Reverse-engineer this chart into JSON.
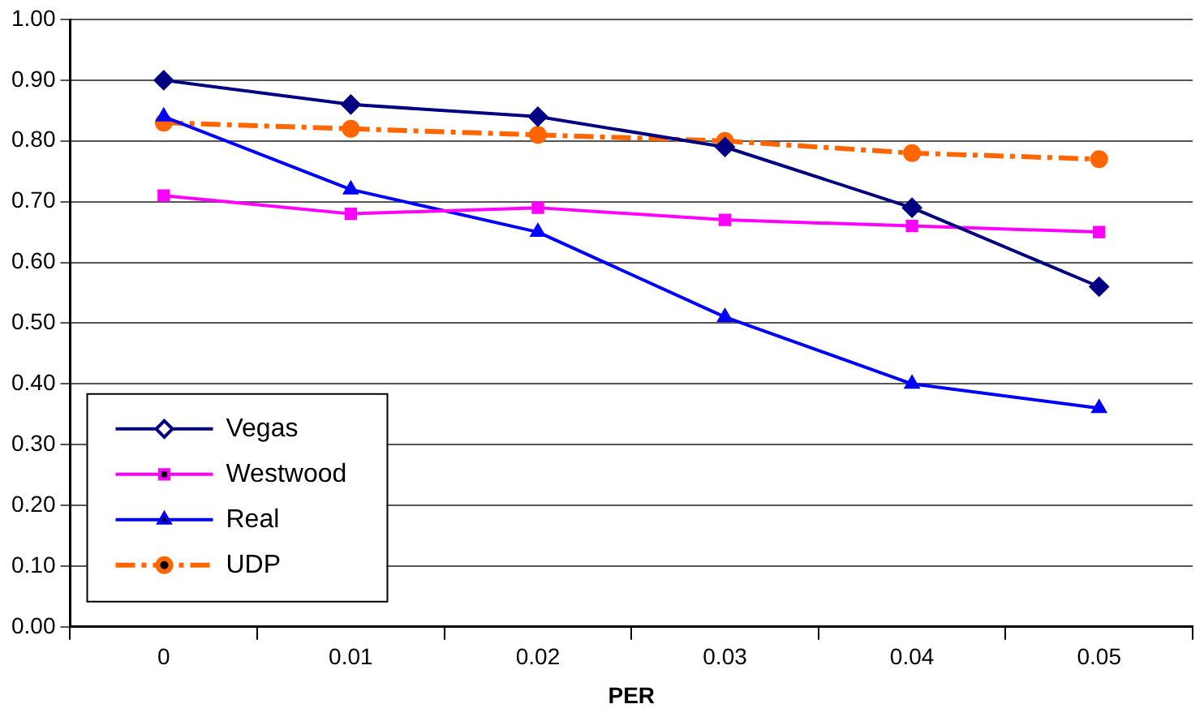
{
  "chart_data": {
    "type": "line",
    "xlabel": "PER",
    "categories": [
      "0",
      "0.01",
      "0.02",
      "0.03",
      "0.04",
      "0.05"
    ],
    "ylim": [
      0,
      1
    ],
    "yticks": [
      {
        "value": 0,
        "label": "0.00"
      },
      {
        "value": 0.1,
        "label": "0.10"
      },
      {
        "value": 0.2,
        "label": "0.20"
      },
      {
        "value": 0.3,
        "label": "0.30"
      },
      {
        "value": 0.4,
        "label": "0.40"
      },
      {
        "value": 0.5,
        "label": "0.50"
      },
      {
        "value": 0.6,
        "label": "0.60"
      },
      {
        "value": 0.7,
        "label": "0.70"
      },
      {
        "value": 0.8,
        "label": "0.80"
      },
      {
        "value": 0.9,
        "label": "0.90"
      },
      {
        "value": 1,
        "label": "1.00"
      }
    ],
    "grid": "y",
    "legend": "bottom left",
    "series": [
      {
        "name": "Vegas",
        "color": "#000080",
        "marker": "diamond",
        "line_style": "solid",
        "values": [
          0.9,
          0.86,
          0.84,
          0.79,
          0.69,
          0.56
        ]
      },
      {
        "name": "Westwood",
        "color": "#ff00ff",
        "marker": "square",
        "line_style": "solid",
        "values": [
          0.71,
          0.68,
          0.69,
          0.67,
          0.66,
          0.65
        ]
      },
      {
        "name": "Real",
        "color": "#0000ff",
        "marker": "triangle",
        "line_style": "solid",
        "values": [
          0.84,
          0.72,
          0.65,
          0.51,
          0.4,
          0.36
        ]
      },
      {
        "name": "UDP",
        "color": "#ff6600",
        "marker": "circle",
        "line_style": "dashed",
        "values": [
          0.83,
          0.82,
          0.81,
          0.8,
          0.78,
          0.77
        ]
      }
    ]
  }
}
